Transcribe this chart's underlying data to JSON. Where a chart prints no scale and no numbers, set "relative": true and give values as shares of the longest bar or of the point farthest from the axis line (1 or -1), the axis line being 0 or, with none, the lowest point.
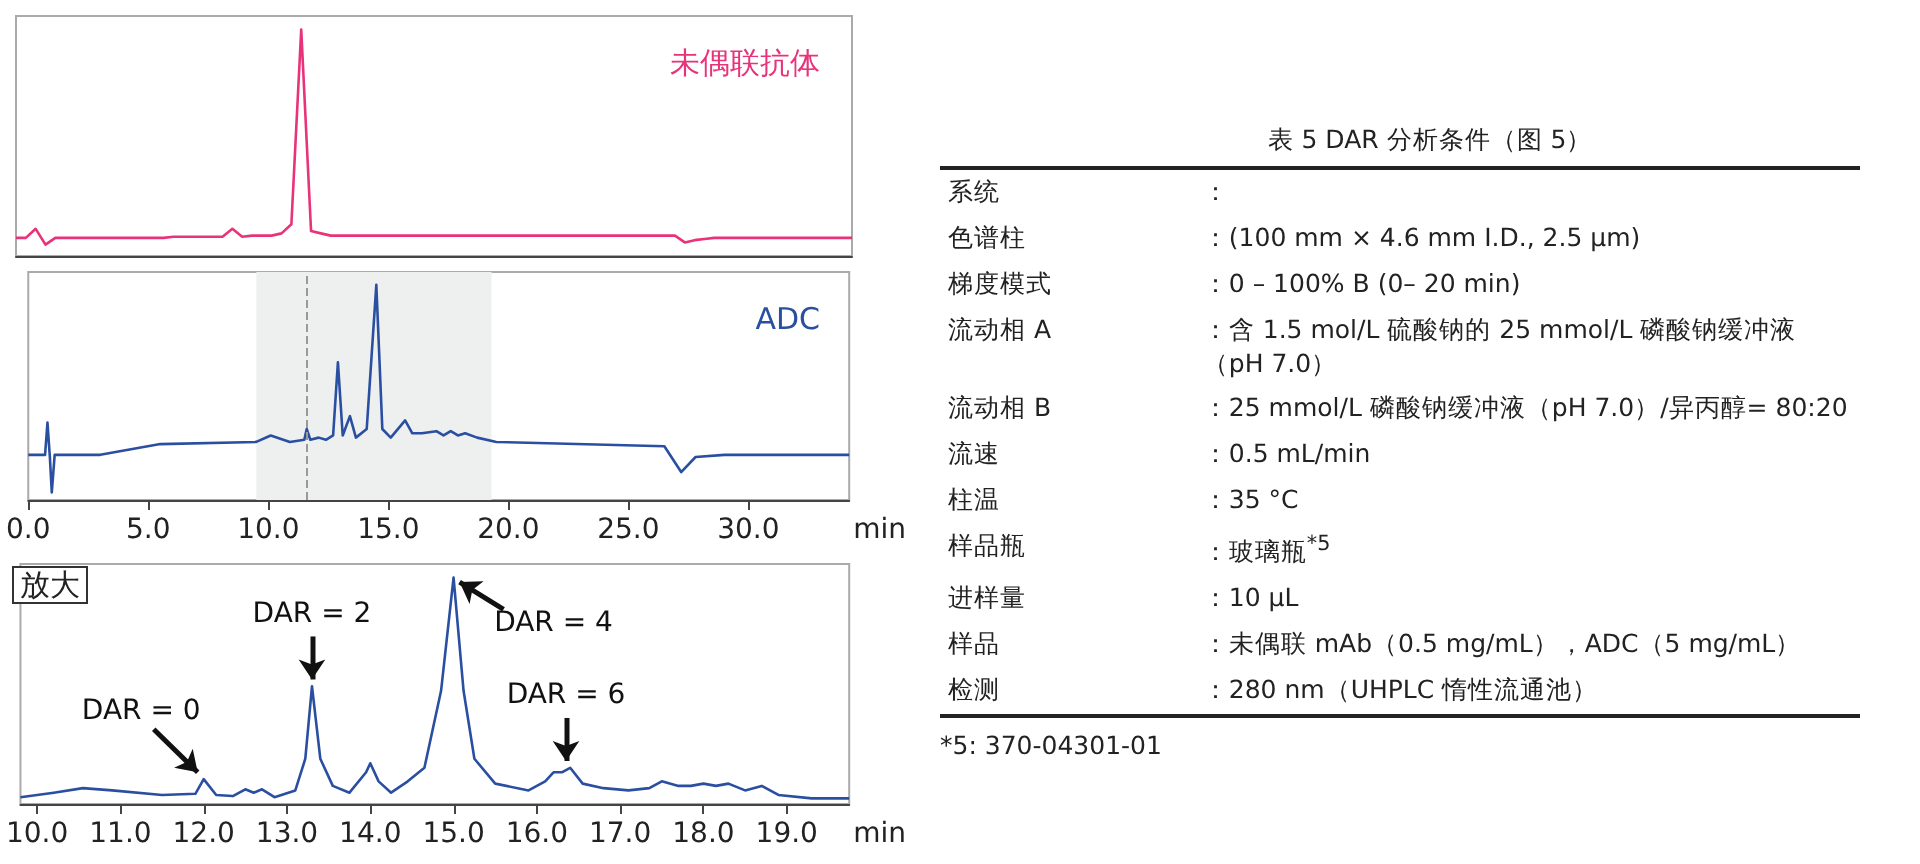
{
  "chart_data": [
    {
      "type": "line",
      "relative": true,
      "categories": [
        null,
        null,
        null,
        null,
        null,
        null,
        null,
        null,
        null,
        null,
        null,
        null,
        null,
        null,
        null,
        null,
        null,
        null,
        null,
        null,
        null,
        null,
        null,
        null,
        null,
        null,
        null,
        null,
        null,
        null,
        null,
        null,
        null,
        null,
        null,
        null,
        null,
        null,
        null,
        null,
        null,
        null,
        null,
        null,
        null,
        null,
        null,
        null,
        null,
        null,
        null,
        null,
        null,
        null,
        null,
        null,
        null,
        null,
        null,
        null,
        null,
        null,
        null,
        null,
        null,
        null,
        null,
        null,
        null,
        null,
        null,
        null,
        null,
        null,
        null,
        null,
        null,
        null,
        null,
        null,
        null,
        null,
        null,
        null,
        null,
        null
      ],
      "tick_labels": false,
      "legend": false,
      "grid": false,
      "marker": "none",
      "series": [
        {
          "name": "未偶联抗体",
          "color": "#e8337a",
          "values": [
            0.08,
            0.08,
            0.12,
            0.05,
            0.08,
            0.08,
            0.08,
            0.08,
            0.08,
            0.08,
            0.08,
            0.08,
            0.08,
            0.08,
            0.08,
            0.08,
            0.085,
            0.085,
            0.085,
            0.085,
            0.085,
            0.085,
            0.12,
            0.085,
            0.09,
            0.09,
            0.09,
            0.1,
            0.14,
            1.0,
            0.11,
            0.1,
            0.09,
            0.09,
            0.09,
            0.09,
            0.09,
            0.09,
            0.09,
            0.09,
            0.09,
            0.09,
            0.09,
            0.09,
            0.09,
            0.09,
            0.09,
            0.09,
            0.09,
            0.09,
            0.09,
            0.09,
            0.09,
            0.09,
            0.09,
            0.09,
            0.09,
            0.09,
            0.09,
            0.09,
            0.09,
            0.09,
            0.09,
            0.09,
            0.09,
            0.09,
            0.09,
            0.09,
            0.06,
            0.07,
            0.075,
            0.08,
            0.08,
            0.08,
            0.08,
            0.08,
            0.08,
            0.08,
            0.08,
            0.08,
            0.08,
            0.08,
            0.08,
            0.08,
            0.08,
            0.08
          ]
        }
      ]
    },
    {
      "type": "line",
      "relative": true,
      "xlim": [
        0,
        34.2
      ],
      "xticks": [
        {
          "value": 0,
          "label": "0.0"
        },
        {
          "value": 5,
          "label": "5.0"
        },
        {
          "value": 10,
          "label": "10.0"
        },
        {
          "value": 15,
          "label": "15.0"
        },
        {
          "value": 20,
          "label": "20.0"
        },
        {
          "value": 25,
          "label": "25.0"
        },
        {
          "value": 30,
          "label": "30.0"
        }
      ],
      "xlabel": "min",
      "tick_labels": "x",
      "legend": false,
      "grid": false,
      "marker": "none",
      "ref_lines": [
        {
          "axis": "x",
          "value": 11.6,
          "color": "#999999",
          "line_style": "dashed"
        }
      ],
      "bands": [
        {
          "axis": "x",
          "from": 9.5,
          "to": 19.3,
          "color": "#eef0f0"
        }
      ],
      "series": [
        {
          "name": "ADC",
          "color": "#2a4fa0",
          "x": [
            0,
            0.7,
            0.8,
            0.9,
            0.98,
            1.1,
            3.0,
            5.5,
            9.5,
            10.1,
            10.9,
            11.5,
            11.6,
            11.75,
            12.1,
            12.4,
            12.7,
            12.9,
            13.1,
            13.4,
            13.65,
            14.1,
            14.5,
            14.75,
            15.1,
            15.7,
            16.0,
            16.4,
            17.0,
            17.3,
            17.6,
            17.9,
            18.2,
            18.7,
            19.5,
            26.5,
            27.2,
            27.8,
            29,
            34.2
          ],
          "values": [
            0.21,
            0.21,
            0.36,
            0.2,
            0.035,
            0.21,
            0.21,
            0.26,
            0.27,
            0.3,
            0.27,
            0.28,
            0.33,
            0.28,
            0.29,
            0.28,
            0.3,
            0.64,
            0.3,
            0.39,
            0.29,
            0.33,
            1.0,
            0.33,
            0.29,
            0.37,
            0.31,
            0.31,
            0.32,
            0.3,
            0.32,
            0.3,
            0.31,
            0.29,
            0.27,
            0.25,
            0.13,
            0.2,
            0.21,
            0.21
          ]
        }
      ]
    },
    {
      "type": "line",
      "relative": true,
      "xlim": [
        9.8,
        19.75
      ],
      "xticks": [
        {
          "value": 10,
          "label": "10.0"
        },
        {
          "value": 11,
          "label": "11.0"
        },
        {
          "value": 12,
          "label": "12.0"
        },
        {
          "value": 13,
          "label": "13.0"
        },
        {
          "value": 14,
          "label": "14.0"
        },
        {
          "value": 15,
          "label": "15.0"
        },
        {
          "value": 16,
          "label": "16.0"
        },
        {
          "value": 17,
          "label": "17.0"
        },
        {
          "value": 18,
          "label": "18.0"
        },
        {
          "value": 19,
          "label": "19.0"
        }
      ],
      "xlabel": "min",
      "tick_labels": "x",
      "legend": false,
      "grid": false,
      "marker": "none",
      "annotations": [
        "放大",
        {
          "text": "DAR = 0",
          "x": 12.0,
          "y": 0.11
        },
        {
          "text": "DAR = 2",
          "x": 13.3,
          "y": 0.52
        },
        {
          "text": "DAR = 4",
          "x": 15.0,
          "y": 1.0
        },
        {
          "text": "DAR = 6",
          "x": 16.35,
          "y": 0.16
        }
      ],
      "series": [
        {
          "color": "#2a4fa0",
          "x": [
            9.8,
            10.2,
            10.55,
            10.9,
            11.5,
            11.9,
            12.0,
            12.15,
            12.35,
            12.5,
            12.6,
            12.7,
            12.85,
            13.1,
            13.22,
            13.3,
            13.4,
            13.55,
            13.75,
            13.95,
            14.0,
            14.1,
            14.25,
            14.45,
            14.65,
            14.85,
            15.0,
            15.12,
            15.25,
            15.5,
            15.9,
            16.1,
            16.2,
            16.3,
            16.4,
            16.55,
            16.8,
            17.1,
            17.35,
            17.5,
            17.7,
            17.85,
            18.0,
            18.15,
            18.3,
            18.5,
            18.7,
            18.9,
            19.3,
            19.75
          ],
          "values": [
            0.03,
            0.05,
            0.07,
            0.06,
            0.04,
            0.045,
            0.11,
            0.04,
            0.035,
            0.065,
            0.05,
            0.065,
            0.03,
            0.06,
            0.2,
            0.52,
            0.2,
            0.08,
            0.05,
            0.14,
            0.18,
            0.1,
            0.05,
            0.1,
            0.16,
            0.5,
            1.0,
            0.5,
            0.2,
            0.09,
            0.06,
            0.1,
            0.14,
            0.14,
            0.16,
            0.09,
            0.07,
            0.06,
            0.07,
            0.1,
            0.08,
            0.08,
            0.09,
            0.08,
            0.09,
            0.06,
            0.08,
            0.04,
            0.025,
            0.025
          ]
        }
      ]
    },
    {
      "type": "other",
      "title": "表 5 DAR 分析条件（图 5）",
      "annotations": [
        "系统",
        "：",
        "色谱柱",
        "：(100 mm × 4.6 mm I.D., 2.5 μm)",
        "梯度模式",
        "：0 – 100% B (0– 20 min)",
        "流动相 A",
        "：含 1.5 mol/L 硫酸钠的 25 mmol/L 磷酸钠缓冲液（pH 7.0）",
        "流动相 B",
        "：25 mmol/L 磷酸钠缓冲液（pH 7.0）/异丙醇= 80:20",
        "流速",
        "：0.5 mL/min",
        "柱温",
        "：35 °C",
        "样品瓶",
        "：玻璃瓶$^{*5}$",
        "进样量",
        "：10 μL",
        "样品",
        "：未偶联 mAb（0.5 mg/mL），ADC（5 mg/mL）",
        "检测",
        "：280 nm（UHPLC 惰性流通池）",
        "*5: 370-04301-01"
      ]
    }
  ]
}
